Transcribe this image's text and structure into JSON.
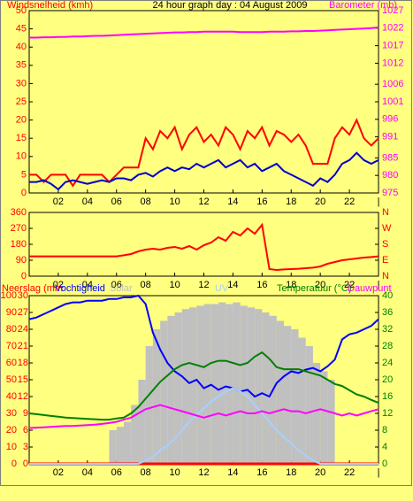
{
  "chart_data": [
    {
      "type": "line",
      "title": "24 hour graph day : 04 August 2009",
      "y_label": "Windsnelheid (kmh)",
      "y2_label": "Barometer (mb)",
      "x": [
        0,
        0.5,
        1,
        1.5,
        2,
        2.5,
        3,
        3.5,
        4,
        4.5,
        5,
        5.5,
        6,
        6.5,
        7,
        7.5,
        8,
        8.5,
        9,
        9.5,
        10,
        10.5,
        11,
        11.5,
        12,
        12.5,
        13,
        13.5,
        14,
        14.5,
        15,
        15.5,
        16,
        16.5,
        17,
        17.5,
        18,
        18.5,
        19,
        19.5,
        20,
        20.5,
        21,
        21.5,
        22,
        22.5,
        23,
        23.5,
        24
      ],
      "xlim": [
        0,
        24
      ],
      "xticks": [
        {
          "value": 2,
          "label": "02"
        },
        {
          "value": 4,
          "label": "04"
        },
        {
          "value": 6,
          "label": "06"
        },
        {
          "value": 8,
          "label": "08"
        },
        10,
        12,
        14,
        16,
        18,
        20,
        22,
        {
          "value": 24,
          "label": "|"
        }
      ],
      "ylim": [
        0,
        50
      ],
      "yticks": [
        0,
        5,
        10,
        15,
        20,
        25,
        30,
        35,
        40,
        45,
        50
      ],
      "ytick_color": "#ff0000",
      "y2lim": [
        975,
        1027
      ],
      "y2ticks": [
        975,
        980,
        985,
        991,
        996,
        1001,
        1006,
        1012,
        1017,
        1022,
        1027
      ],
      "y2tick_color": "#ff00ff",
      "series": [
        {
          "color": "#ff0000",
          "values": [
            5,
            5,
            3,
            5,
            5,
            5,
            2,
            5,
            5,
            5,
            5,
            3,
            5,
            7,
            7,
            7,
            15,
            12,
            17,
            15,
            18,
            12,
            16,
            18,
            14,
            16,
            13,
            18,
            16,
            12,
            17,
            15,
            18,
            13,
            17,
            16,
            14,
            16,
            13,
            8,
            8,
            8,
            15,
            18,
            16,
            20,
            15,
            13,
            15
          ]
        },
        {
          "color": "#0000cc",
          "values": [
            3,
            3,
            3.5,
            2.5,
            1,
            3,
            3.5,
            3,
            2.5,
            3,
            3.5,
            3,
            4,
            4,
            3.5,
            5,
            5.5,
            4.5,
            6,
            7,
            6,
            7,
            6.5,
            8,
            7,
            8,
            9,
            7,
            8,
            9,
            7,
            8,
            6,
            7,
            8,
            6,
            5,
            4,
            3,
            2,
            4,
            3,
            5,
            8,
            9,
            11,
            9,
            8,
            9
          ]
        },
        {
          "color": "#ff00ff",
          "axis": "y2",
          "values": [
            1019.3,
            1019.3,
            1019.4,
            1019.4,
            1019.5,
            1019.5,
            1019.6,
            1019.6,
            1019.7,
            1019.8,
            1019.8,
            1019.9,
            1020,
            1020.1,
            1020.2,
            1020.3,
            1020.4,
            1020.5,
            1020.6,
            1020.7,
            1020.8,
            1020.8,
            1020.9,
            1020.9,
            1021,
            1021,
            1021,
            1021,
            1021,
            1020.9,
            1020.9,
            1020.9,
            1020.9,
            1021,
            1021,
            1021,
            1021.1,
            1021.1,
            1021.2,
            1021.2,
            1021.3,
            1021.4,
            1021.5,
            1021.6,
            1021.7,
            1021.8,
            1021.9,
            1022,
            1022.2
          ]
        }
      ]
    },
    {
      "type": "line",
      "x": [
        0,
        0.5,
        1,
        1.5,
        2,
        2.5,
        3,
        3.5,
        4,
        4.5,
        5,
        5.5,
        6,
        6.5,
        7,
        7.5,
        8,
        8.5,
        9,
        9.5,
        10,
        10.5,
        11,
        11.5,
        12,
        12.5,
        13,
        13.5,
        14,
        14.5,
        15,
        15.5,
        16,
        16.5,
        17,
        17.5,
        18,
        18.5,
        19,
        19.5,
        20,
        20.5,
        21,
        21.5,
        22,
        22.5,
        23,
        23.5,
        24
      ],
      "xlim": [
        0,
        24
      ],
      "xticks": [
        {
          "value": 2,
          "label": "02"
        },
        {
          "value": 4,
          "label": "04"
        },
        {
          "value": 6,
          "label": "06"
        },
        {
          "value": 8,
          "label": "08"
        },
        10,
        12,
        14,
        16,
        18,
        20,
        22,
        {
          "value": 24,
          "label": "|"
        }
      ],
      "ylim": [
        0,
        360
      ],
      "yticks": [
        0,
        90,
        180,
        270,
        360
      ],
      "ytick_color": "#ff0000",
      "y2lim": [
        0,
        360
      ],
      "y2ticks": [
        {
          "value": 0,
          "label": "N"
        },
        {
          "value": 90,
          "label": "E"
        },
        {
          "value": 180,
          "label": "S"
        },
        {
          "value": 270,
          "label": "W"
        },
        {
          "value": 360,
          "label": "N"
        }
      ],
      "y2tick_color": "#ff0000",
      "series": [
        {
          "color": "#ff0000",
          "values": [
            112,
            112,
            112,
            112,
            112,
            112,
            112,
            112,
            112,
            112,
            112,
            112,
            112,
            118,
            125,
            140,
            150,
            155,
            150,
            160,
            165,
            155,
            170,
            150,
            175,
            190,
            220,
            200,
            250,
            230,
            270,
            240,
            290,
            40,
            35,
            38,
            40,
            42,
            45,
            48,
            55,
            70,
            80,
            90,
            95,
            100,
            105,
            108,
            112
          ]
        }
      ]
    },
    {
      "type": "line",
      "x": [
        0,
        0.5,
        1,
        1.5,
        2,
        2.5,
        3,
        3.5,
        4,
        4.5,
        5,
        5.5,
        6,
        6.5,
        7,
        7.5,
        8,
        8.5,
        9,
        9.5,
        10,
        10.5,
        11,
        11.5,
        12,
        12.5,
        13,
        13.5,
        14,
        14.5,
        15,
        15.5,
        16,
        16.5,
        17,
        17.5,
        18,
        18.5,
        19,
        19.5,
        20,
        20.5,
        21,
        21.5,
        22,
        22.5,
        23,
        23.5,
        24
      ],
      "xlim": [
        0,
        24
      ],
      "xticks": [
        {
          "value": 2,
          "label": "02"
        },
        {
          "value": 4,
          "label": "04"
        },
        {
          "value": 6,
          "label": "06"
        },
        {
          "value": 8,
          "label": "08"
        },
        10,
        12,
        14,
        16,
        18,
        20,
        22,
        {
          "value": 24,
          "label": "|"
        }
      ],
      "ylim": [
        0,
        100
      ],
      "yticks": [
        0,
        10,
        20,
        30,
        40,
        50,
        60,
        70,
        80,
        90,
        100
      ],
      "ytick_color": "#ff0000",
      "y3lim": [
        0,
        30
      ],
      "y3ticks": [
        0,
        3,
        6,
        9,
        12,
        15,
        18,
        21,
        24,
        27,
        30
      ],
      "y3tick_color": "#ff0000",
      "y2lim": [
        0,
        40
      ],
      "y2ticks": [
        0,
        4,
        8,
        12,
        16,
        20,
        24,
        28,
        32,
        36,
        40
      ],
      "y2tick_color": "#008000",
      "series": [
        {
          "name": "Neerslag (mm",
          "color": "#ff0000",
          "axis": "y3",
          "values": [
            0,
            0,
            0,
            0,
            0,
            0,
            0,
            0,
            0,
            0,
            0,
            0,
            0,
            0,
            0,
            0,
            0,
            0,
            0,
            0,
            0,
            0,
            0,
            0,
            0,
            0,
            0,
            0,
            0,
            0,
            0,
            0,
            0,
            0,
            0,
            0,
            0,
            0,
            0,
            0,
            0,
            0,
            0,
            0,
            0,
            0,
            0,
            0,
            0
          ]
        },
        {
          "name": "Vochtigheid",
          "color": "#0000ff",
          "values": [
            86,
            87,
            89,
            91,
            93,
            95,
            96,
            96,
            97,
            97,
            97,
            98,
            98,
            99,
            99,
            100,
            95,
            78,
            68,
            60,
            55,
            52,
            48,
            50,
            45,
            47,
            44,
            46,
            45,
            43,
            44,
            40,
            42,
            40,
            48,
            52,
            55,
            54,
            56,
            57,
            55,
            58,
            62,
            74,
            77,
            78,
            80,
            82,
            86
          ]
        },
        {
          "name": "Solar",
          "color": "#c0c0c0",
          "draw": "bars",
          "values": [
            0,
            0,
            0,
            0,
            0,
            0,
            0,
            0,
            0,
            0,
            0,
            20,
            22,
            25,
            35,
            50,
            70,
            80,
            85,
            88,
            90,
            92,
            93,
            94,
            95,
            95,
            96,
            95,
            96,
            94,
            93,
            92,
            90,
            88,
            85,
            82,
            80,
            75,
            70,
            60,
            55,
            50,
            0,
            0,
            0,
            0,
            0,
            0,
            0
          ]
        },
        {
          "name": "UV",
          "color": "#a8d0ff",
          "values": [
            0,
            0,
            0,
            0,
            0,
            0,
            0,
            0,
            0,
            0,
            0,
            0,
            0,
            0,
            0,
            0,
            2,
            4,
            8,
            11,
            15,
            20,
            25,
            29,
            33,
            37,
            40,
            43,
            45,
            43,
            40,
            35,
            30,
            25,
            20,
            16,
            12,
            8,
            5,
            2,
            0,
            0,
            0,
            0,
            0,
            0,
            0,
            0,
            0
          ]
        },
        {
          "name": "Temperatuur (°C)",
          "color": "#008000",
          "axis": "y2",
          "values": [
            12,
            11.8,
            11.6,
            11.4,
            11.2,
            11,
            10.9,
            10.8,
            10.7,
            10.6,
            10.5,
            10.5,
            10.8,
            11,
            12,
            13.5,
            15.5,
            17.5,
            19.5,
            21,
            22.5,
            23.5,
            24,
            23.5,
            23,
            24,
            24.5,
            24.5,
            24,
            23.5,
            24,
            25.5,
            26.5,
            25,
            23,
            22.5,
            22.5,
            22.5,
            22,
            21.5,
            21,
            20,
            19,
            18.5,
            17.5,
            16.5,
            16,
            15.2,
            14.5
          ]
        },
        {
          "name": "Dauwpunt",
          "color": "#ff00ff",
          "axis": "y2",
          "values": [
            8.5,
            8.6,
            8.7,
            8.8,
            8.9,
            9,
            9,
            9.1,
            9.2,
            9.3,
            9.5,
            9.7,
            10,
            10.5,
            11,
            12,
            13,
            13.5,
            14,
            13.5,
            13,
            12.5,
            12,
            11.5,
            11,
            11.5,
            12,
            11.5,
            12,
            12.5,
            12,
            12,
            12.5,
            12,
            12.5,
            13,
            12.5,
            12.5,
            12,
            12.5,
            13,
            12.5,
            12,
            11.5,
            12,
            11.5,
            12,
            12.5,
            13
          ]
        }
      ]
    }
  ]
}
